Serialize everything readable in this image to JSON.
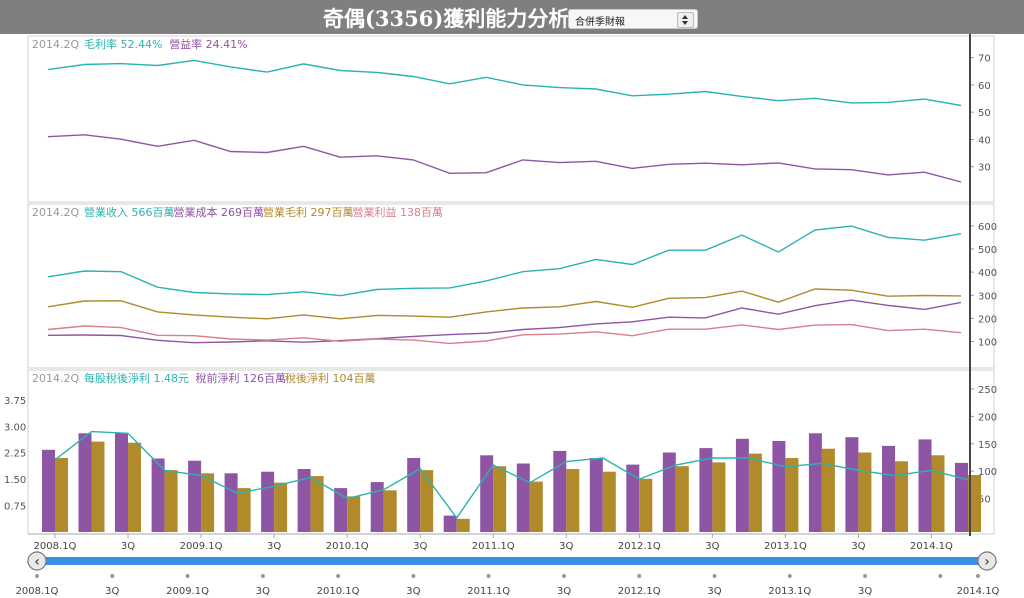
{
  "page": {
    "title": "奇偶(3356)獲利能力分析",
    "report_select": {
      "value": "合併季財報"
    }
  },
  "colors": {
    "teal": "#2bb3b1",
    "purple": "#8e55a5",
    "gold": "#b08a2b",
    "pink": "#d77f8e",
    "scrollbar": "#3a8ee6"
  },
  "chart_data": [
    {
      "type": "line",
      "legend_prefix": "2014.2Q",
      "series": [
        {
          "name": "毛利率",
          "legend_value": "52.44%",
          "color": "#2bb3b1",
          "values": [
            65.6,
            67.5,
            67.8,
            67.1,
            69,
            66.6,
            64.7,
            67.7,
            65.3,
            64.6,
            63.1,
            60.4,
            62.8,
            60,
            59,
            58.5,
            56,
            56.6,
            57.6,
            55.8,
            54.2,
            55.1,
            53.4,
            53.6,
            54.8,
            52.44
          ]
        },
        {
          "name": "營益率",
          "legend_value": "24.41%",
          "color": "#8e55a5",
          "values": [
            41,
            41.7,
            40.1,
            37.5,
            39.7,
            35.6,
            35.2,
            37.5,
            33.5,
            34,
            32.5,
            27.6,
            27.8,
            32.5,
            31.5,
            32,
            29.4,
            30.9,
            31.3,
            30.7,
            31.4,
            29.2,
            28.9,
            27,
            28,
            24.41
          ]
        }
      ],
      "yticks": [
        30,
        40,
        50,
        60,
        70
      ],
      "ylim": [
        20,
        75
      ]
    },
    {
      "type": "line",
      "legend_prefix": "2014.2Q",
      "series": [
        {
          "name": "營業收入",
          "legend_value": "566百萬",
          "color": "#2bb3b1",
          "values": [
            380,
            405,
            402,
            335,
            312,
            306,
            303,
            315,
            298,
            325,
            330,
            332,
            362,
            402,
            415,
            455,
            433,
            495,
            495,
            560,
            487,
            582,
            599,
            550,
            538,
            566
          ]
        },
        {
          "name": "營業成本",
          "legend_value": "269百萬",
          "color": "#8e55a5",
          "values": [
            127,
            128,
            126,
            105,
            95,
            98,
            103,
            97,
            104,
            112,
            122,
            130,
            136,
            152,
            160,
            176,
            185,
            205,
            202,
            245,
            218,
            255,
            279,
            256,
            239,
            269
          ]
        },
        {
          "name": "營業毛利",
          "legend_value": "297百萬",
          "color": "#b08a2b",
          "values": [
            250,
            275,
            276,
            228,
            215,
            205,
            198,
            215,
            198,
            213,
            210,
            205,
            228,
            245,
            250,
            273,
            248,
            287,
            290,
            318,
            270,
            327,
            322,
            296,
            299,
            297
          ]
        },
        {
          "name": "營業利益",
          "legend_value": "138百萬",
          "color": "#d77f8e",
          "values": [
            152,
            167,
            160,
            127,
            125,
            111,
            106,
            116,
            101,
            111,
            106,
            92,
            102,
            129,
            132,
            142,
            125,
            153,
            153,
            172,
            152,
            171,
            173,
            147,
            153,
            138
          ]
        }
      ],
      "yticks": [
        100,
        200,
        300,
        400,
        500,
        600
      ],
      "ylim": [
        20,
        660
      ]
    },
    {
      "type": "bar",
      "legend_prefix": "2014.2Q",
      "line_series": {
        "name": "每股稅後淨利",
        "legend_value": "1.48元",
        "color": "#2bb3b1",
        "values": [
          2.05,
          2.85,
          2.8,
          1.75,
          1.6,
          1.1,
          1.3,
          1.55,
          0.95,
          1.2,
          1.8,
          0.4,
          1.9,
          1.4,
          2,
          2.1,
          1.5,
          1.9,
          2.1,
          2.1,
          1.85,
          1.95,
          1.75,
          1.6,
          1.75,
          1.48
        ]
      },
      "series": [
        {
          "name": "稅前淨利",
          "legend_value": "126百萬",
          "color": "#8e55a5",
          "values": [
            150,
            180,
            181,
            134,
            130,
            107,
            110,
            115,
            80,
            91,
            135,
            30,
            140,
            125,
            148,
            135,
            123,
            145,
            153,
            170,
            166,
            180,
            173,
            157,
            169,
            126
          ]
        },
        {
          "name": "稅後淨利",
          "legend_value": "104百萬",
          "color": "#b08a2b",
          "values": [
            135,
            165,
            163,
            113,
            107,
            80,
            90,
            102,
            65,
            76,
            113,
            24,
            120,
            92,
            115,
            110,
            97,
            120,
            127,
            143,
            135,
            152,
            145,
            129,
            140,
            104
          ]
        }
      ],
      "left_yticks": [
        "0.75",
        "1.50",
        "2.25",
        "3.00",
        "3.75"
      ],
      "left_ylim": [
        0,
        4.2
      ],
      "right_yticks": [
        50,
        100,
        150,
        200,
        250
      ],
      "right_ylim": [
        0,
        270
      ]
    }
  ],
  "x_axis": {
    "labels": [
      "2008.1Q",
      "3Q",
      "2009.1Q",
      "3Q",
      "2010.1Q",
      "3Q",
      "2011.1Q",
      "3Q",
      "2012.1Q",
      "3Q",
      "2013.1Q",
      "3Q",
      "2014.1Q"
    ],
    "label_indices": [
      0,
      2,
      4,
      6,
      8,
      10,
      12,
      14,
      16,
      18,
      20,
      22,
      24
    ]
  },
  "navigator": {
    "labels": [
      "2008.1Q",
      "3Q",
      "2009.1Q",
      "3Q",
      "2010.1Q",
      "3Q",
      "2011.1Q",
      "3Q",
      "2012.1Q",
      "3Q",
      "2013.1Q",
      "3Q",
      "2014.1Q"
    ],
    "label_indices": [
      0,
      2,
      4,
      6,
      8,
      10,
      12,
      14,
      16,
      18,
      20,
      22,
      25
    ]
  }
}
